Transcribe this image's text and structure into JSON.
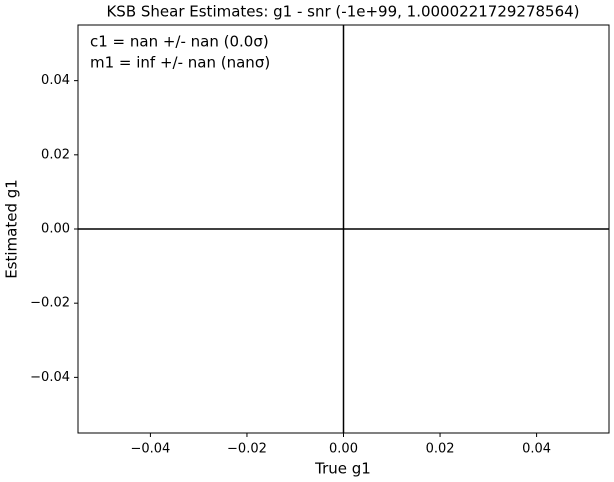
{
  "chart_data": {
    "type": "scatter",
    "title": "KSB Shear Estimates: g1  - snr (-1e+99, 1.0000221729278564)",
    "x_label": "True g1",
    "y_label": "Estimated g1",
    "annotations": [
      "c1 = nan +/- nan (0.0σ)",
      "m1 = inf +/- nan (nanσ)"
    ],
    "xlim": [
      -0.055,
      0.055
    ],
    "ylim": [
      -0.055,
      0.055
    ],
    "xticks": [
      {
        "value": -0.04,
        "label": "−0.04"
      },
      {
        "value": -0.02,
        "label": "−0.02"
      },
      {
        "value": 0,
        "label": "0.00"
      },
      0.02,
      0.04
    ],
    "yticks": [
      {
        "value": -0.04,
        "label": "−0.04"
      },
      {
        "value": -0.02,
        "label": "−0.02"
      },
      {
        "value": 0,
        "label": "0.00"
      },
      0.02,
      0.04
    ],
    "axhline": 0,
    "axvline": 0,
    "line_color": "#000000"
  }
}
